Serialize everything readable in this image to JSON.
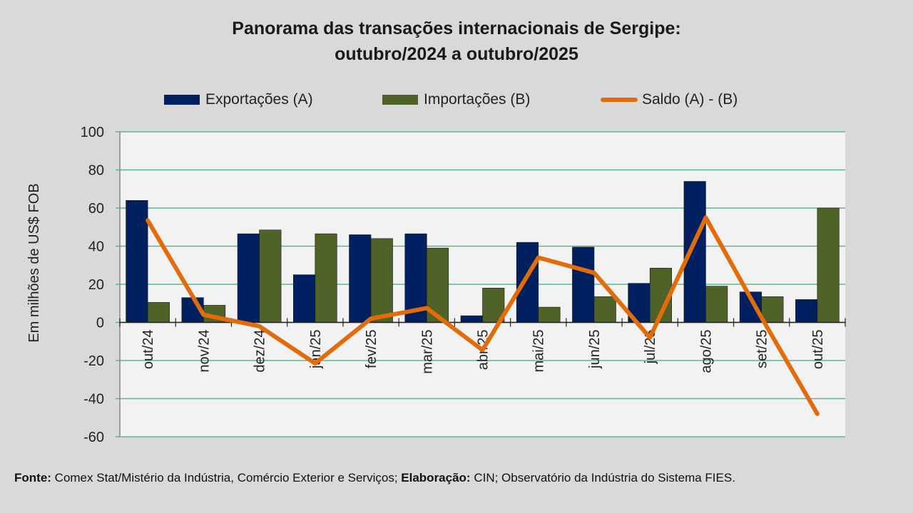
{
  "title_line1": "Panorama  das transações internacionais de Sergipe:",
  "title_line2": "outubro/2024 a outubro/2025",
  "colors": {
    "exports": "#002060",
    "imports": "#4f6228",
    "saldo": "#e36c0a",
    "grid": "#5cb88a",
    "plot_bg": "#f2f2f2",
    "page_bg": "#d9d9d9"
  },
  "footer": {
    "fonte_label": "Fonte:",
    "fonte_text": " Comex Stat/Mistério da  Indústria, Comércio Exterior e Serviços; ",
    "elab_label": "Elaboração:",
    "elab_text": "  CIN; Observatório da Indústria do Sistema FIES."
  },
  "chart_data": {
    "type": "bar",
    "title": "Panorama das transações internacionais de Sergipe: outubro/2024 a outubro/2025",
    "xlabel": "",
    "ylabel": "Em milhões de US$ FOB",
    "ylim": [
      -60,
      100
    ],
    "yticks": [
      100,
      80,
      60,
      40,
      20,
      0,
      -20,
      -40,
      -60
    ],
    "grid": true,
    "legend_position": "top",
    "categories": [
      "out/24",
      "nov/24",
      "dez/24",
      "jan/25",
      "fev/25",
      "mar/25",
      "abr/25",
      "mai/25",
      "jun/25",
      "jul/25",
      "ago/25",
      "set/25",
      "out/25"
    ],
    "series": [
      {
        "name": "Exportações (A)",
        "type": "bar",
        "values": [
          64,
          13,
          46.5,
          25,
          46,
          46.5,
          3.5,
          42,
          39.5,
          20.5,
          74,
          16,
          12
        ]
      },
      {
        "name": "Importações (B)",
        "type": "bar",
        "values": [
          10.5,
          9,
          48.5,
          46.5,
          44,
          39,
          18,
          8,
          13.5,
          28.5,
          19,
          13.5,
          60
        ]
      },
      {
        "name": "Saldo (A) - (B)",
        "type": "line",
        "values": [
          53.5,
          4,
          -2,
          -21.5,
          2,
          7.5,
          -14.5,
          34,
          26,
          -8,
          55,
          2.5,
          -48
        ]
      }
    ]
  }
}
